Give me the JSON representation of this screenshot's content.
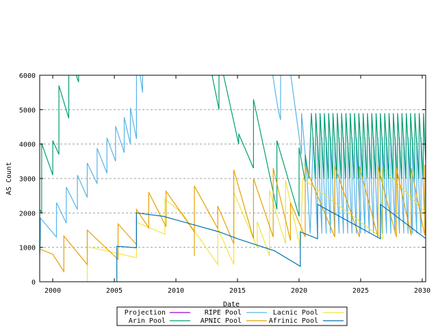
{
  "chart_data": {
    "type": "line",
    "title": "",
    "xlabel": "Date",
    "ylabel": "AS Count",
    "xlim": [
      1998.94,
      2030.28
    ],
    "ylim": [
      0,
      6000
    ],
    "x_ticks": [
      2000,
      2005,
      2010,
      2015,
      2020,
      2025,
      2030
    ],
    "y_ticks": [
      0,
      1000,
      2000,
      3000,
      4000,
      5000,
      6000
    ],
    "grid": "horizontal dashed",
    "legend_placement": "bottom",
    "series": [
      {
        "name": "Projection",
        "color": "#9400d3",
        "points": []
      },
      {
        "name": "RIPE Pool",
        "color": "#56b4e9",
        "points": [
          [
            1998.95,
            800
          ],
          [
            1999.0,
            1300
          ],
          [
            1999.0,
            1850
          ],
          [
            2000.3,
            1300
          ],
          [
            2000.3,
            2300
          ],
          [
            2001.1,
            1700
          ],
          [
            2001.1,
            2750
          ],
          [
            2002.0,
            2100
          ],
          [
            2002.0,
            3100
          ],
          [
            2002.8,
            2450
          ],
          [
            2002.8,
            3450
          ],
          [
            2003.6,
            2850
          ],
          [
            2003.6,
            3880
          ],
          [
            2004.4,
            3150
          ],
          [
            2004.4,
            4180
          ],
          [
            2005.1,
            3500
          ],
          [
            2005.1,
            4520
          ],
          [
            2005.8,
            3750
          ],
          [
            2005.8,
            4780
          ],
          [
            2006.3,
            4000
          ],
          [
            2006.3,
            5050
          ],
          [
            2006.8,
            4150
          ],
          [
            2006.8,
            6600
          ],
          [
            2007.1,
            6000
          ],
          [
            2007.3,
            5500
          ],
          [
            2007.3,
            6600
          ],
          [
            2017.6,
            6600
          ],
          [
            2018.3,
            5000
          ],
          [
            2018.5,
            4700
          ],
          [
            2018.5,
            6600
          ],
          [
            2019.1,
            6600
          ],
          [
            2020.2,
            3700
          ],
          [
            2020.2,
            4900
          ],
          [
            2020.6,
            3300
          ],
          [
            2020.9,
            1400
          ],
          [
            2021.15,
            4200
          ],
          [
            2021.5,
            1400
          ],
          [
            2021.5,
            4200
          ],
          [
            2021.85,
            1400
          ],
          [
            2021.85,
            4200
          ],
          [
            2022.2,
            1400
          ],
          [
            2022.2,
            4200
          ],
          [
            2022.55,
            1400
          ],
          [
            2022.55,
            4200
          ],
          [
            2022.9,
            1400
          ],
          [
            2022.9,
            4200
          ],
          [
            2023.25,
            1400
          ],
          [
            2023.25,
            4200
          ],
          [
            2023.6,
            1400
          ],
          [
            2023.6,
            4200
          ],
          [
            2023.95,
            1400
          ],
          [
            2023.95,
            4200
          ],
          [
            2024.3,
            1400
          ],
          [
            2024.3,
            4200
          ],
          [
            2024.65,
            1400
          ],
          [
            2024.65,
            4200
          ],
          [
            2025.0,
            1400
          ],
          [
            2025.0,
            4200
          ],
          [
            2025.35,
            1400
          ],
          [
            2025.35,
            4200
          ],
          [
            2025.7,
            1400
          ],
          [
            2025.7,
            4200
          ],
          [
            2026.05,
            1400
          ],
          [
            2026.05,
            4200
          ],
          [
            2026.4,
            1400
          ],
          [
            2026.4,
            4200
          ],
          [
            2026.75,
            1400
          ],
          [
            2026.75,
            4200
          ],
          [
            2027.1,
            1400
          ],
          [
            2027.1,
            4200
          ],
          [
            2027.45,
            1400
          ],
          [
            2027.45,
            4200
          ],
          [
            2027.8,
            1400
          ],
          [
            2027.8,
            4200
          ],
          [
            2028.15,
            1400
          ],
          [
            2028.15,
            4200
          ],
          [
            2028.5,
            1400
          ],
          [
            2028.5,
            4200
          ],
          [
            2028.85,
            1400
          ],
          [
            2028.85,
            4200
          ],
          [
            2029.2,
            1400
          ],
          [
            2029.2,
            4200
          ],
          [
            2029.55,
            1400
          ],
          [
            2029.55,
            4200
          ],
          [
            2029.9,
            1400
          ],
          [
            2029.9,
            4200
          ],
          [
            2030.25,
            1400
          ]
        ]
      },
      {
        "name": "Lacnic Pool",
        "color": "#f0e442",
        "points": [
          [
            2002.8,
            0
          ],
          [
            2002.8,
            1020
          ],
          [
            2006.8,
            700
          ],
          [
            2006.8,
            1730
          ],
          [
            2009.1,
            1380
          ],
          [
            2009.1,
            2400
          ],
          [
            2010.5,
            2000
          ],
          [
            2013.4,
            500
          ],
          [
            2013.4,
            1550
          ],
          [
            2014.7,
            500
          ],
          [
            2014.7,
            2600
          ],
          [
            2016.6,
            1000
          ],
          [
            2016.6,
            1750
          ],
          [
            2017.6,
            750
          ],
          [
            2017.6,
            2650
          ],
          [
            2018.9,
            1100
          ],
          [
            2018.9,
            2950
          ],
          [
            2020.1,
            1000
          ],
          [
            2020.3,
            3000
          ],
          [
            2026.8,
            1250
          ],
          [
            2026.8,
            3300
          ],
          [
            2030.3,
            2000
          ]
        ]
      },
      {
        "name": "Arin Pool",
        "color": "#009e73",
        "points": [
          [
            1998.95,
            2100
          ],
          [
            1999.1,
            2000
          ],
          [
            1999.1,
            4020
          ],
          [
            2000.0,
            3100
          ],
          [
            2000.0,
            4100
          ],
          [
            2000.5,
            3700
          ],
          [
            2000.5,
            5700
          ],
          [
            2001.3,
            4750
          ],
          [
            2001.3,
            6600
          ],
          [
            2001.9,
            6000
          ],
          [
            2002.1,
            5800
          ],
          [
            2002.1,
            6600
          ],
          [
            2012.6,
            6600
          ],
          [
            2013.5,
            5000
          ],
          [
            2013.5,
            6600
          ],
          [
            2015.1,
            4000
          ],
          [
            2015.1,
            4300
          ],
          [
            2016.3,
            3300
          ],
          [
            2016.3,
            5300
          ],
          [
            2018.2,
            2100
          ],
          [
            2018.2,
            4100
          ],
          [
            2020.0,
            1900
          ],
          [
            2020.0,
            3900
          ],
          [
            2020.5,
            2900
          ],
          [
            2020.5,
            3700
          ],
          [
            2020.8,
            3000
          ],
          [
            2021.0,
            4900
          ],
          [
            2021.33,
            3000
          ],
          [
            2021.35,
            4900
          ],
          [
            2021.68,
            3000
          ],
          [
            2021.7,
            4900
          ],
          [
            2022.03,
            3000
          ],
          [
            2022.05,
            4900
          ],
          [
            2022.38,
            3000
          ],
          [
            2022.4,
            4900
          ],
          [
            2022.73,
            3000
          ],
          [
            2022.75,
            4900
          ],
          [
            2023.08,
            3000
          ],
          [
            2023.1,
            4900
          ],
          [
            2023.43,
            3000
          ],
          [
            2023.45,
            4900
          ],
          [
            2023.78,
            3000
          ],
          [
            2023.8,
            4900
          ],
          [
            2024.13,
            3000
          ],
          [
            2024.15,
            4900
          ],
          [
            2024.48,
            3000
          ],
          [
            2024.5,
            4900
          ],
          [
            2024.83,
            3000
          ],
          [
            2024.85,
            4900
          ],
          [
            2025.18,
            3000
          ],
          [
            2025.2,
            4900
          ],
          [
            2025.53,
            3000
          ],
          [
            2025.55,
            4900
          ],
          [
            2025.88,
            3000
          ],
          [
            2025.9,
            4900
          ],
          [
            2026.23,
            3000
          ],
          [
            2026.25,
            4900
          ],
          [
            2026.58,
            3000
          ],
          [
            2026.6,
            4900
          ],
          [
            2026.93,
            3000
          ],
          [
            2026.95,
            4900
          ],
          [
            2027.28,
            3000
          ],
          [
            2027.3,
            4900
          ],
          [
            2027.63,
            3000
          ],
          [
            2027.65,
            4900
          ],
          [
            2027.98,
            3000
          ],
          [
            2028.0,
            4900
          ],
          [
            2028.33,
            3000
          ],
          [
            2028.35,
            4900
          ],
          [
            2028.68,
            3000
          ],
          [
            2028.7,
            4900
          ],
          [
            2029.03,
            3000
          ],
          [
            2029.05,
            4900
          ],
          [
            2029.38,
            3000
          ],
          [
            2029.4,
            4900
          ],
          [
            2029.73,
            3000
          ],
          [
            2029.75,
            4900
          ],
          [
            2030.08,
            3000
          ],
          [
            2030.1,
            4900
          ],
          [
            2030.28,
            3500
          ]
        ]
      },
      {
        "name": "APNIC Pool",
        "color": "#e69f00",
        "points": [
          [
            1998.95,
            950
          ],
          [
            2000.0,
            800
          ],
          [
            2000.9,
            300
          ],
          [
            2000.9,
            1330
          ],
          [
            2002.8,
            500
          ],
          [
            2002.8,
            1500
          ],
          [
            2005.3,
            650
          ],
          [
            2005.3,
            1680
          ],
          [
            2006.8,
            1080
          ],
          [
            2006.8,
            2100
          ],
          [
            2007.8,
            1570
          ],
          [
            2007.8,
            2600
          ],
          [
            2009.2,
            1600
          ],
          [
            2009.2,
            2630
          ],
          [
            2011.5,
            1450
          ],
          [
            2011.5,
            750
          ],
          [
            2011.5,
            2780
          ],
          [
            2013.4,
            1550
          ],
          [
            2013.4,
            2200
          ],
          [
            2014.7,
            1100
          ],
          [
            2014.7,
            3250
          ],
          [
            2016.3,
            1250
          ],
          [
            2016.3,
            3000
          ],
          [
            2017.9,
            1300
          ],
          [
            2017.9,
            3300
          ],
          [
            2019.3,
            1200
          ],
          [
            2019.3,
            2300
          ],
          [
            2020.5,
            1300
          ],
          [
            2020.5,
            3350
          ],
          [
            2022.9,
            1300
          ],
          [
            2022.9,
            3350
          ],
          [
            2024.9,
            1300
          ],
          [
            2024.9,
            3350
          ],
          [
            2026.4,
            1300
          ],
          [
            2026.4,
            3350
          ],
          [
            2027.9,
            1300
          ],
          [
            2027.9,
            3300
          ],
          [
            2029.1,
            1350
          ],
          [
            2029.1,
            3300
          ],
          [
            2030.2,
            1350
          ],
          [
            2030.2,
            3400
          ]
        ]
      },
      {
        "name": "Afrinic Pool",
        "color": "#0072b2",
        "points": [
          [
            2005.2,
            0
          ],
          [
            2005.2,
            1030
          ],
          [
            2006.8,
            990
          ],
          [
            2006.8,
            2000
          ],
          [
            2009.0,
            1900
          ],
          [
            2011.0,
            1700
          ],
          [
            2013.5,
            1450
          ],
          [
            2015.0,
            1250
          ],
          [
            2018.0,
            900
          ],
          [
            2020.1,
            450
          ],
          [
            2020.1,
            1450
          ],
          [
            2021.5,
            1250
          ],
          [
            2021.5,
            2250
          ],
          [
            2026.6,
            1250
          ],
          [
            2026.6,
            2250
          ],
          [
            2030.3,
            1250
          ]
        ]
      }
    ]
  }
}
